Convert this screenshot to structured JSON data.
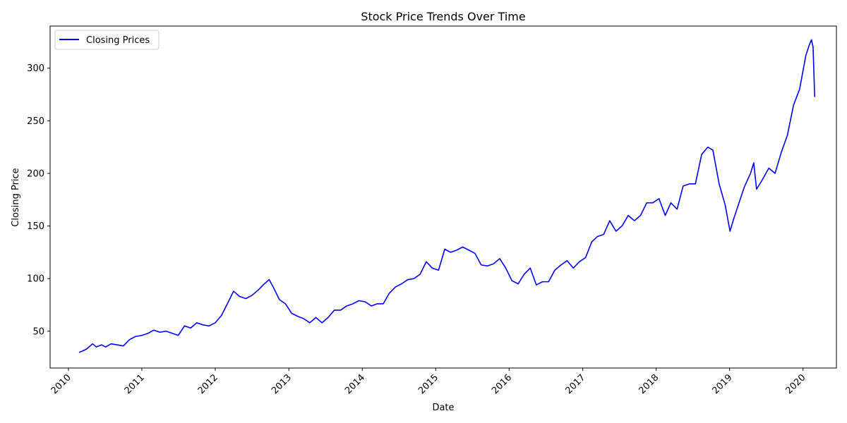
{
  "chart_data": {
    "type": "line",
    "title": "Stock Price Trends Over Time",
    "xlabel": "Date",
    "ylabel": "Closing Price",
    "xlim": [
      "2009-10-02",
      "2020-06-15"
    ],
    "ylim": [
      15,
      340
    ],
    "x_ticks": [
      "2010",
      "2011",
      "2012",
      "2013",
      "2014",
      "2015",
      "2016",
      "2017",
      "2018",
      "2019",
      "2020"
    ],
    "y_ticks": [
      50,
      100,
      150,
      200,
      250,
      300
    ],
    "grid": false,
    "legend": {
      "position": "top-left",
      "entries": [
        "Closing Prices"
      ]
    },
    "series": [
      {
        "name": "Closing Prices",
        "color": "#0000ff",
        "points": [
          [
            "2010-02-25",
            30
          ],
          [
            "2010-03-10",
            31
          ],
          [
            "2010-04-01",
            33
          ],
          [
            "2010-05-01",
            38
          ],
          [
            "2010-05-20",
            35
          ],
          [
            "2010-06-15",
            37
          ],
          [
            "2010-07-05",
            35
          ],
          [
            "2010-08-01",
            38
          ],
          [
            "2010-09-01",
            37
          ],
          [
            "2010-10-01",
            36
          ],
          [
            "2010-11-01",
            42
          ],
          [
            "2010-12-01",
            45
          ],
          [
            "2011-01-01",
            46
          ],
          [
            "2011-02-01",
            48
          ],
          [
            "2011-03-01",
            51
          ],
          [
            "2011-04-01",
            49
          ],
          [
            "2011-05-01",
            50
          ],
          [
            "2011-06-01",
            48
          ],
          [
            "2011-07-01",
            46
          ],
          [
            "2011-08-01",
            55
          ],
          [
            "2011-09-01",
            53
          ],
          [
            "2011-10-01",
            58
          ],
          [
            "2011-11-01",
            56
          ],
          [
            "2011-12-01",
            55
          ],
          [
            "2012-01-01",
            58
          ],
          [
            "2012-02-01",
            65
          ],
          [
            "2012-03-01",
            76
          ],
          [
            "2012-04-01",
            88
          ],
          [
            "2012-05-01",
            83
          ],
          [
            "2012-06-01",
            81
          ],
          [
            "2012-07-01",
            84
          ],
          [
            "2012-08-01",
            89
          ],
          [
            "2012-09-01",
            95
          ],
          [
            "2012-09-25",
            99
          ],
          [
            "2012-10-15",
            92
          ],
          [
            "2012-11-15",
            80
          ],
          [
            "2012-12-15",
            76
          ],
          [
            "2013-01-15",
            67
          ],
          [
            "2013-02-15",
            64
          ],
          [
            "2013-03-15",
            62
          ],
          [
            "2013-04-15",
            58
          ],
          [
            "2013-05-15",
            63
          ],
          [
            "2013-06-15",
            58
          ],
          [
            "2013-07-15",
            63
          ],
          [
            "2013-08-15",
            70
          ],
          [
            "2013-09-15",
            70
          ],
          [
            "2013-10-15",
            74
          ],
          [
            "2013-11-15",
            76
          ],
          [
            "2013-12-15",
            79
          ],
          [
            "2014-01-15",
            78
          ],
          [
            "2014-02-15",
            74
          ],
          [
            "2014-03-15",
            76
          ],
          [
            "2014-04-15",
            76
          ],
          [
            "2014-05-15",
            86
          ],
          [
            "2014-06-15",
            92
          ],
          [
            "2014-07-15",
            95
          ],
          [
            "2014-08-15",
            99
          ],
          [
            "2014-09-15",
            100
          ],
          [
            "2014-10-15",
            104
          ],
          [
            "2014-11-15",
            116
          ],
          [
            "2014-12-15",
            110
          ],
          [
            "2015-01-15",
            108
          ],
          [
            "2015-02-15",
            128
          ],
          [
            "2015-03-15",
            125
          ],
          [
            "2015-04-15",
            127
          ],
          [
            "2015-05-15",
            130
          ],
          [
            "2015-06-15",
            127
          ],
          [
            "2015-07-15",
            124
          ],
          [
            "2015-08-15",
            113
          ],
          [
            "2015-09-15",
            112
          ],
          [
            "2015-10-15",
            114
          ],
          [
            "2015-11-15",
            119
          ],
          [
            "2015-12-15",
            110
          ],
          [
            "2016-01-15",
            98
          ],
          [
            "2016-02-15",
            95
          ],
          [
            "2016-03-15",
            104
          ],
          [
            "2016-04-15",
            110
          ],
          [
            "2016-05-15",
            94
          ],
          [
            "2016-06-15",
            97
          ],
          [
            "2016-07-15",
            97
          ],
          [
            "2016-08-15",
            108
          ],
          [
            "2016-09-15",
            113
          ],
          [
            "2016-10-15",
            117
          ],
          [
            "2016-11-15",
            110
          ],
          [
            "2016-12-15",
            116
          ],
          [
            "2017-01-15",
            120
          ],
          [
            "2017-02-15",
            135
          ],
          [
            "2017-03-15",
            140
          ],
          [
            "2017-04-15",
            142
          ],
          [
            "2017-05-15",
            155
          ],
          [
            "2017-06-15",
            145
          ],
          [
            "2017-07-15",
            150
          ],
          [
            "2017-08-15",
            160
          ],
          [
            "2017-09-15",
            155
          ],
          [
            "2017-10-15",
            160
          ],
          [
            "2017-11-15",
            172
          ],
          [
            "2017-12-15",
            172
          ],
          [
            "2018-01-15",
            176
          ],
          [
            "2018-02-15",
            160
          ],
          [
            "2018-03-15",
            172
          ],
          [
            "2018-04-15",
            166
          ],
          [
            "2018-05-15",
            188
          ],
          [
            "2018-06-15",
            190
          ],
          [
            "2018-07-15",
            190
          ],
          [
            "2018-08-15",
            218
          ],
          [
            "2018-09-15",
            225
          ],
          [
            "2018-10-10",
            222
          ],
          [
            "2018-11-10",
            190
          ],
          [
            "2018-12-10",
            170
          ],
          [
            "2019-01-03",
            145
          ],
          [
            "2019-01-20",
            156
          ],
          [
            "2019-02-15",
            171
          ],
          [
            "2019-03-15",
            187
          ],
          [
            "2019-04-15",
            200
          ],
          [
            "2019-05-01",
            210
          ],
          [
            "2019-05-15",
            185
          ],
          [
            "2019-06-10",
            193
          ],
          [
            "2019-07-15",
            205
          ],
          [
            "2019-08-15",
            200
          ],
          [
            "2019-09-15",
            220
          ],
          [
            "2019-10-15",
            236
          ],
          [
            "2019-11-15",
            265
          ],
          [
            "2019-12-15",
            280
          ],
          [
            "2020-01-15",
            312
          ],
          [
            "2020-02-01",
            322
          ],
          [
            "2020-02-12",
            327
          ],
          [
            "2020-02-20",
            320
          ],
          [
            "2020-02-25",
            290
          ],
          [
            "2020-02-28",
            273
          ]
        ]
      }
    ]
  }
}
